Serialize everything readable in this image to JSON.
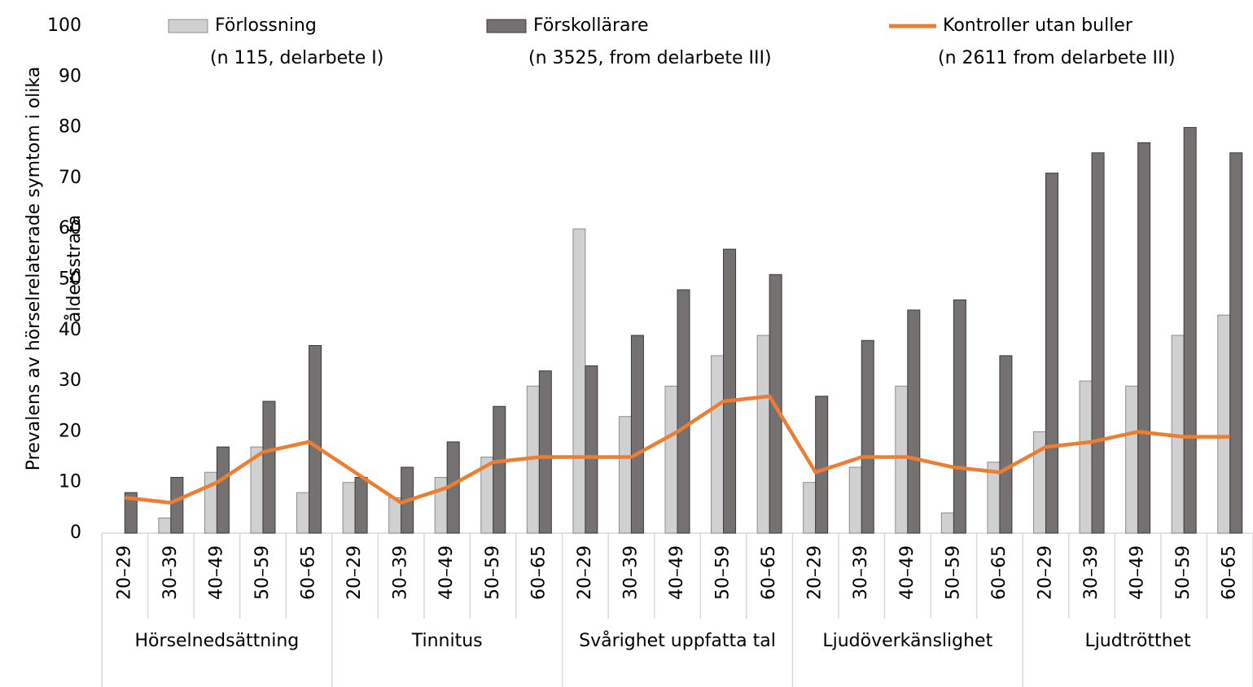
{
  "chart_data": {
    "type": "bar",
    "ylabel": [
      "Prevalens av hörselrelaterade symtom i olika",
      "åldersstrata"
    ],
    "categories": [
      "20–29",
      "30–39",
      "40–49",
      "50–59",
      "60–65",
      "20–29",
      "30–39",
      "40–49",
      "50–59",
      "60–65",
      "20–29",
      "30–39",
      "40–49",
      "50–59",
      "60–65",
      "20–29",
      "30–39",
      "40–49",
      "50–59",
      "60–65",
      "20–29",
      "30–39",
      "40–49",
      "50–59",
      "60–65"
    ],
    "groups": [
      "Hörselnedsättning",
      "Tinnitus",
      "Svårighet uppfatta tal",
      "Ljudöverkänslighet",
      "Ljudtrötthet"
    ],
    "ylim": [
      0,
      100
    ],
    "yticks": [
      0,
      10,
      20,
      30,
      40,
      50,
      60,
      70,
      80,
      90,
      100
    ],
    "grid": false,
    "series": [
      {
        "name": "Förlossning",
        "n_label": "(n 115, delarbete I)",
        "type": "bar",
        "color": "#d0d0d0",
        "values": [
          0,
          3,
          12,
          17,
          8,
          10,
          7,
          11,
          15,
          29,
          60,
          23,
          29,
          35,
          39,
          10,
          13,
          29,
          4,
          14,
          20,
          30,
          29,
          39,
          43
        ]
      },
      {
        "name": "Förskollärare",
        "n_label": "(n 3525, from delarbete III)",
        "type": "bar",
        "color": "#767171",
        "values": [
          8,
          11,
          17,
          26,
          37,
          11,
          13,
          18,
          25,
          32,
          33,
          39,
          48,
          56,
          51,
          27,
          38,
          44,
          46,
          35,
          71,
          75,
          77,
          80,
          75
        ]
      },
      {
        "name": "Kontroller utan buller",
        "n_label": "(n 2611 from delarbete III)",
        "type": "line",
        "color": "#ed7d31",
        "values": [
          7,
          6,
          10,
          16,
          18,
          12,
          6,
          9,
          14,
          15,
          15,
          15,
          20,
          26,
          27,
          12,
          15,
          15,
          13,
          12,
          17,
          18,
          20,
          19,
          19
        ]
      }
    ]
  }
}
